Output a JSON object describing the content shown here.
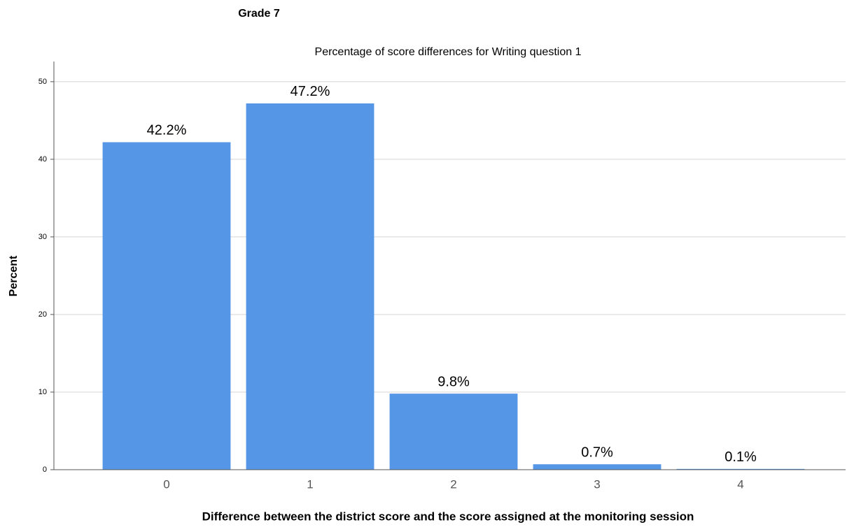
{
  "chart_data": {
    "type": "bar",
    "heading": "Grade 7",
    "title": "Percentage of score differences for Writing question 1",
    "x_label": "Difference between the district score and the score assigned at the monitoring session",
    "y_label": "Percent",
    "categories": [
      "0",
      "1",
      "2",
      "3",
      "4"
    ],
    "values": [
      42.2,
      47.2,
      9.8,
      0.7,
      0.1
    ],
    "value_labels": [
      "42.2%",
      "47.2%",
      "9.8%",
      "0.7%",
      "0.1%"
    ],
    "color": "#5596e6",
    "ylim": [
      0,
      52.6
    ],
    "yticks": [
      0,
      10,
      20,
      30,
      40,
      50
    ],
    "grid": true
  }
}
